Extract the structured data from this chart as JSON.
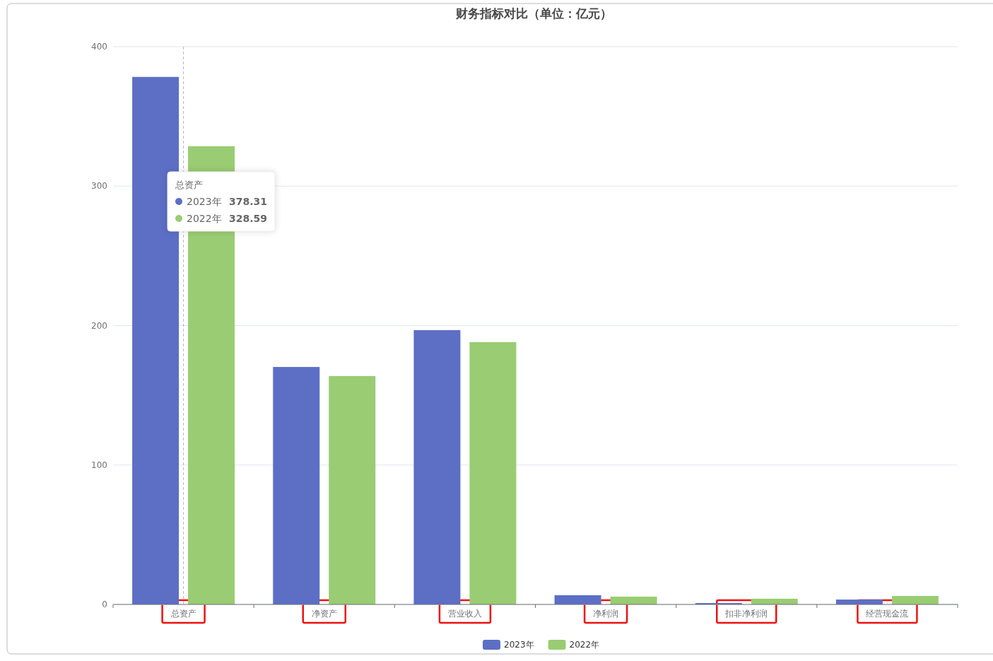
{
  "chart_data": {
    "type": "bar",
    "title": "财务指标对比（单位：亿元）",
    "categories": [
      "总资产",
      "净资产",
      "营业收入",
      "净利润",
      "扣非净利润",
      "经营现金流"
    ],
    "series": [
      {
        "name": "2023年",
        "color": "#5c6fc5",
        "values": [
          378.31,
          170.3,
          196.7,
          6.6,
          1.0,
          3.5
        ]
      },
      {
        "name": "2022年",
        "color": "#99cc73",
        "values": [
          328.59,
          163.8,
          188.1,
          5.6,
          4.1,
          6.1
        ]
      }
    ],
    "ylim": [
      0,
      400
    ],
    "yticks": [
      0,
      100,
      200,
      300,
      400
    ],
    "grid": "y",
    "legend": "bottom",
    "ref_lines": [
      {
        "axis": "x",
        "value": "总资产",
        "line_style": "dashed",
        "color": "#b0b4c8"
      }
    ],
    "annotations": [
      "总资产",
      "2023年",
      "378.31",
      "2022年",
      "328.59"
    ]
  }
}
